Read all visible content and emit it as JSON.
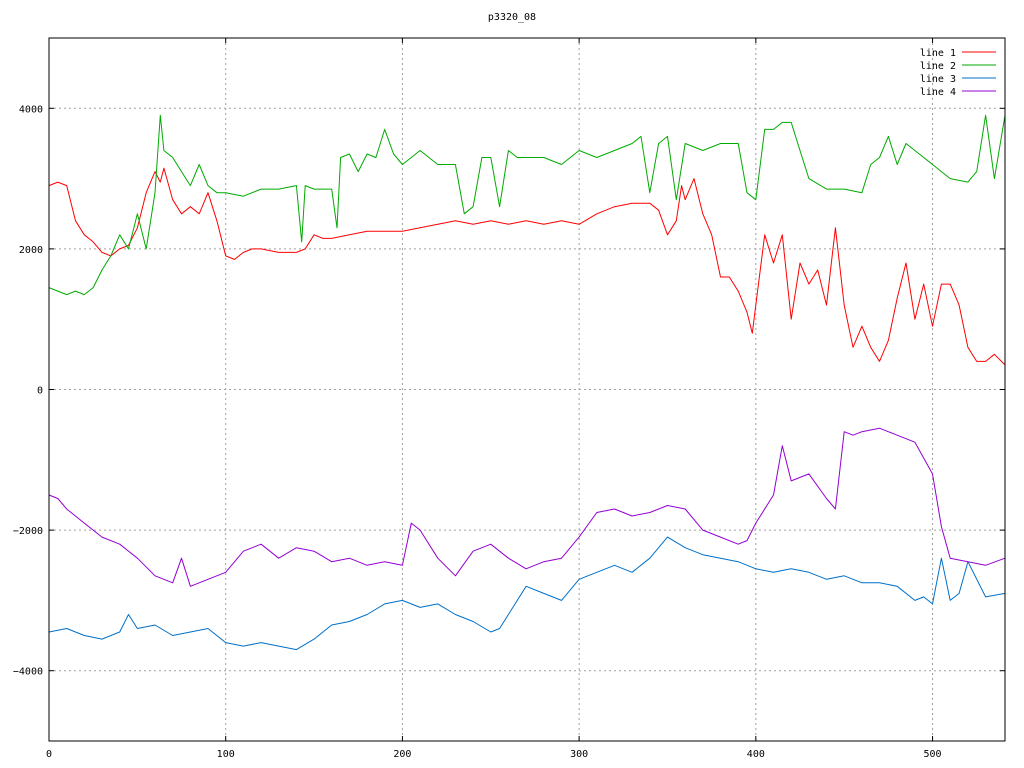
{
  "chart_data": {
    "type": "line",
    "title": "p3320_08",
    "xlabel": "",
    "ylabel": "",
    "xlim": [
      0,
      541
    ],
    "ylim": [
      -5000,
      5000
    ],
    "xticks": [
      0,
      100,
      200,
      300,
      400,
      500
    ],
    "yticks": [
      -4000,
      -2000,
      0,
      2000,
      4000
    ],
    "xtick_labels": [
      "0",
      "100",
      "200",
      "300",
      "400",
      "500"
    ],
    "ytick_labels": [
      "−4000",
      "−2000",
      "0",
      "2000",
      "4000"
    ],
    "grid": true,
    "legend_position": "top-right",
    "series": [
      {
        "name": "line 1",
        "color": "#ff0000",
        "x": [
          0,
          5,
          10,
          15,
          20,
          25,
          30,
          35,
          40,
          45,
          50,
          55,
          60,
          63,
          65,
          70,
          75,
          80,
          85,
          90,
          95,
          100,
          105,
          110,
          115,
          120,
          130,
          140,
          145,
          150,
          155,
          160,
          170,
          180,
          190,
          200,
          210,
          220,
          230,
          240,
          250,
          260,
          270,
          280,
          290,
          300,
          310,
          320,
          330,
          340,
          345,
          350,
          355,
          358,
          360,
          365,
          370,
          375,
          380,
          385,
          390,
          395,
          398,
          400,
          405,
          410,
          415,
          420,
          425,
          430,
          435,
          440,
          445,
          450,
          455,
          460,
          465,
          470,
          475,
          480,
          485,
          490,
          495,
          500,
          505,
          510,
          515,
          520,
          525,
          530,
          535,
          541
        ],
        "y": [
          2900,
          2950,
          2900,
          2400,
          2200,
          2100,
          1950,
          1900,
          2000,
          2050,
          2300,
          2800,
          3100,
          2950,
          3150,
          2700,
          2500,
          2600,
          2500,
          2800,
          2400,
          1900,
          1850,
          1950,
          2000,
          2000,
          1950,
          1950,
          2000,
          2200,
          2150,
          2150,
          2200,
          2250,
          2250,
          2250,
          2300,
          2350,
          2400,
          2350,
          2400,
          2350,
          2400,
          2350,
          2400,
          2350,
          2500,
          2600,
          2650,
          2650,
          2550,
          2200,
          2400,
          2900,
          2700,
          3000,
          2500,
          2200,
          1600,
          1600,
          1400,
          1100,
          800,
          1200,
          2200,
          1800,
          2200,
          1000,
          1800,
          1500,
          1700,
          1200,
          2300,
          1200,
          600,
          900,
          600,
          400,
          700,
          1300,
          1800,
          1000,
          1500,
          900,
          1500,
          1500,
          1200,
          600,
          400,
          400,
          500,
          350
        ]
      },
      {
        "name": "line 2",
        "color": "#00aa00",
        "x": [
          0,
          5,
          10,
          15,
          20,
          25,
          30,
          35,
          40,
          45,
          50,
          55,
          60,
          63,
          65,
          70,
          75,
          80,
          85,
          90,
          95,
          100,
          110,
          120,
          130,
          140,
          143,
          145,
          150,
          160,
          163,
          165,
          170,
          175,
          180,
          185,
          190,
          195,
          200,
          205,
          210,
          220,
          230,
          235,
          240,
          245,
          250,
          255,
          260,
          265,
          270,
          280,
          290,
          300,
          310,
          320,
          330,
          335,
          340,
          345,
          350,
          355,
          360,
          370,
          380,
          390,
          395,
          400,
          405,
          410,
          415,
          420,
          425,
          430,
          440,
          450,
          460,
          465,
          470,
          475,
          480,
          485,
          490,
          500,
          510,
          520,
          525,
          530,
          535,
          541
        ],
        "y": [
          1450,
          1400,
          1350,
          1400,
          1350,
          1450,
          1700,
          1900,
          2200,
          2000,
          2500,
          2000,
          2800,
          3900,
          3400,
          3300,
          3100,
          2900,
          3200,
          2900,
          2800,
          2800,
          2750,
          2850,
          2850,
          2900,
          2100,
          2900,
          2850,
          2850,
          2300,
          3300,
          3350,
          3100,
          3350,
          3300,
          3700,
          3350,
          3200,
          3300,
          3400,
          3200,
          3200,
          2500,
          2600,
          3300,
          3300,
          2600,
          3400,
          3300,
          3300,
          3300,
          3200,
          3400,
          3300,
          3400,
          3500,
          3600,
          2800,
          3500,
          3600,
          2700,
          3500,
          3400,
          3500,
          3500,
          2800,
          2700,
          3700,
          3700,
          3800,
          3800,
          3400,
          3000,
          2850,
          2850,
          2800,
          3200,
          3300,
          3600,
          3200,
          3500,
          3400,
          3200,
          3000,
          2950,
          3100,
          3900,
          3000,
          3900
        ]
      },
      {
        "name": "line 3",
        "color": "#0070c8",
        "x": [
          0,
          10,
          20,
          30,
          40,
          45,
          50,
          60,
          70,
          80,
          90,
          100,
          110,
          120,
          130,
          140,
          150,
          160,
          170,
          180,
          190,
          200,
          210,
          220,
          230,
          240,
          250,
          255,
          260,
          270,
          280,
          290,
          300,
          310,
          320,
          330,
          340,
          350,
          360,
          370,
          380,
          390,
          400,
          410,
          420,
          430,
          440,
          450,
          460,
          470,
          480,
          490,
          495,
          500,
          505,
          510,
          515,
          520,
          530,
          541
        ],
        "y": [
          -3450,
          -3400,
          -3500,
          -3550,
          -3450,
          -3200,
          -3400,
          -3350,
          -3500,
          -3450,
          -3400,
          -3600,
          -3650,
          -3600,
          -3650,
          -3700,
          -3550,
          -3350,
          -3300,
          -3200,
          -3050,
          -3000,
          -3100,
          -3050,
          -3200,
          -3300,
          -3450,
          -3400,
          -3200,
          -2800,
          -2900,
          -3000,
          -2700,
          -2600,
          -2500,
          -2600,
          -2400,
          -2100,
          -2250,
          -2350,
          -2400,
          -2450,
          -2550,
          -2600,
          -2550,
          -2600,
          -2700,
          -2650,
          -2750,
          -2750,
          -2800,
          -3000,
          -2950,
          -3050,
          -2400,
          -3000,
          -2900,
          -2450,
          -2950,
          -2900
        ]
      },
      {
        "name": "line 4",
        "color": "#9400d3",
        "x": [
          0,
          5,
          10,
          20,
          30,
          40,
          50,
          60,
          70,
          75,
          80,
          90,
          100,
          110,
          120,
          130,
          140,
          150,
          160,
          170,
          180,
          190,
          200,
          205,
          210,
          220,
          230,
          240,
          250,
          260,
          270,
          280,
          290,
          300,
          310,
          320,
          330,
          340,
          350,
          360,
          370,
          380,
          390,
          395,
          400,
          410,
          415,
          420,
          430,
          440,
          445,
          450,
          455,
          460,
          470,
          480,
          490,
          500,
          505,
          510,
          520,
          530,
          541
        ],
        "y": [
          -1500,
          -1550,
          -1700,
          -1900,
          -2100,
          -2200,
          -2400,
          -2650,
          -2750,
          -2400,
          -2800,
          -2700,
          -2600,
          -2300,
          -2200,
          -2400,
          -2250,
          -2300,
          -2450,
          -2400,
          -2500,
          -2450,
          -2500,
          -1900,
          -2000,
          -2400,
          -2650,
          -2300,
          -2200,
          -2400,
          -2550,
          -2450,
          -2400,
          -2100,
          -1750,
          -1700,
          -1800,
          -1750,
          -1650,
          -1700,
          -2000,
          -2100,
          -2200,
          -2150,
          -1900,
          -1500,
          -800,
          -1300,
          -1200,
          -1550,
          -1700,
          -600,
          -650,
          -600,
          -550,
          -650,
          -750,
          -1200,
          -1950,
          -2400,
          -2450,
          -2500,
          -2400
        ]
      }
    ]
  }
}
